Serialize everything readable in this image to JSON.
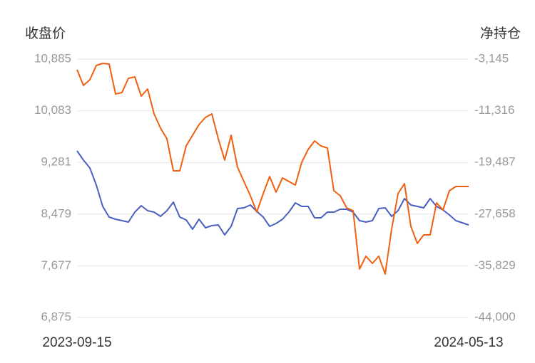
{
  "chart_data": {
    "type": "line",
    "y_title": "收盘价",
    "y2_title": "净持仓",
    "categories": [
      "2023-09-15",
      null,
      null,
      null,
      null,
      null,
      null,
      null,
      null,
      null,
      null,
      null,
      null,
      null,
      null,
      null,
      null,
      null,
      null,
      null,
      null,
      null,
      null,
      null,
      null,
      null,
      null,
      null,
      null,
      null,
      null,
      null,
      null,
      null,
      null,
      null,
      null,
      null,
      null,
      null,
      null,
      null,
      null,
      null,
      null,
      null,
      null,
      null,
      null,
      null,
      null,
      null,
      null,
      null,
      null,
      null,
      null,
      null,
      null,
      null,
      null,
      "2024-05-13"
    ],
    "ylim": [
      6875,
      10885
    ],
    "yticks": [
      {
        "value": 6875,
        "label": "6,875"
      },
      {
        "value": 7677,
        "label": "7,677"
      },
      {
        "value": 8479,
        "label": "8,479"
      },
      {
        "value": 9281,
        "label": "9,281"
      },
      {
        "value": 10083,
        "label": "10,083"
      },
      {
        "value": 10885,
        "label": "10,885"
      }
    ],
    "y2lim": [
      -44000,
      -3145
    ],
    "y2ticks": [
      {
        "value": -44000,
        "label": "-44,000"
      },
      {
        "value": -35829,
        "label": "-35,829"
      },
      {
        "value": -27658,
        "label": "-27,658"
      },
      {
        "value": -19487,
        "label": "-19,487"
      },
      {
        "value": -11316,
        "label": "-11,316"
      },
      {
        "value": -3145,
        "label": "-3,145"
      }
    ],
    "grid": true,
    "series": [
      {
        "color": "#4a5fc1",
        "values": [
          9460,
          9316,
          9195,
          8930,
          8598,
          8433,
          8399,
          8377,
          8355,
          8510,
          8609,
          8532,
          8510,
          8444,
          8532,
          8665,
          8433,
          8388,
          8245,
          8399,
          8267,
          8300,
          8311,
          8156,
          8289,
          8565,
          8576,
          8620,
          8521,
          8433,
          8289,
          8333,
          8399,
          8510,
          8654,
          8598,
          8598,
          8422,
          8422,
          8510,
          8510,
          8554,
          8554,
          8510,
          8377,
          8355,
          8377,
          8565,
          8576,
          8444,
          8532,
          8720,
          8620,
          8598,
          8576,
          8720,
          8598,
          8543,
          8466,
          8377,
          8344,
          8311
        ]
      },
      {
        "color": "#f06010",
        "axis": "y2",
        "values": [
          -4833,
          -7309,
          -6409,
          -4158,
          -3820,
          -3933,
          -8660,
          -8435,
          -6184,
          -5959,
          -8998,
          -7872,
          -11811,
          -14062,
          -15751,
          -20815,
          -20815,
          -16876,
          -15188,
          -13500,
          -12374,
          -11811,
          -15751,
          -19127,
          -15188,
          -20253,
          -22504,
          -24755,
          -27343,
          -24417,
          -21716,
          -24192,
          -21941,
          -22504,
          -23066,
          -19465,
          -17439,
          -16088,
          -16876,
          -17214,
          -23967,
          -24755,
          -26668,
          -27118,
          -36347,
          -34321,
          -35447,
          -34321,
          -37135,
          -30044,
          -24417,
          -22841,
          -29594,
          -32295,
          -30945,
          -30945,
          -25880,
          -27006,
          -23967,
          -23291,
          -23291,
          -23291
        ]
      }
    ]
  }
}
